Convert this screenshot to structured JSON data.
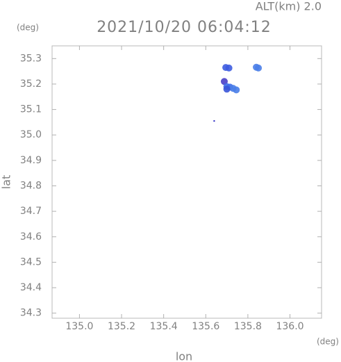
{
  "chart_data": {
    "type": "scatter",
    "title": "2021/10/20 06:04:12",
    "subtitle": "ALT(km) 2.0",
    "y_unit": "(deg)",
    "x_unit": "(deg)",
    "x_label": "lon",
    "y_label": "lat",
    "x": [
      135.695,
      135.71,
      135.84,
      135.85,
      135.688,
      135.7,
      135.715,
      135.73,
      135.745,
      135.7,
      135.64
    ],
    "values": [
      35.265,
      35.263,
      35.266,
      35.263,
      35.21,
      35.19,
      35.188,
      35.183,
      35.177,
      35.18,
      35.055
    ],
    "colors": [
      "#3d5ce0",
      "#3d5ce0",
      "#4a7ee8",
      "#4a7ee8",
      "#4a3fc8",
      "#3f6ee8",
      "#3f6ee8",
      "#4a7ee8",
      "#4a7ee8",
      "#3a55d8",
      "#2020c0"
    ],
    "xlim": [
      134.87,
      136.15
    ],
    "ylim": [
      34.28,
      35.35
    ],
    "xticks": [
      {
        "value": 135.0,
        "label": "135.0"
      },
      135.2,
      135.4,
      135.6,
      135.8,
      {
        "value": 136.0,
        "label": "136.0"
      }
    ],
    "yticks": [
      34.3,
      34.4,
      34.5,
      34.6,
      34.7,
      34.8,
      34.9,
      {
        "value": 35.0,
        "label": "35.0"
      },
      35.1,
      35.2,
      35.3
    ]
  }
}
